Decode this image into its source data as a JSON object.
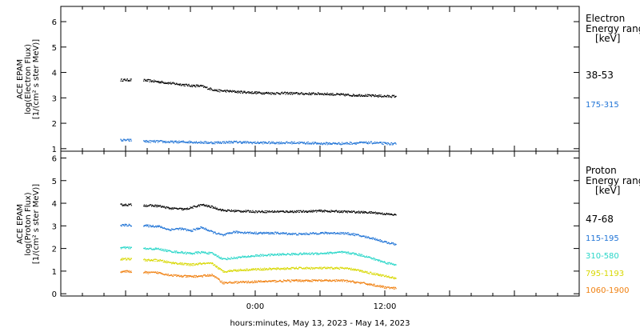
{
  "chart_data": [
    {
      "type": "scatter",
      "panel": "electron",
      "ylabel_lines": [
        "ACE EPAM",
        "log(Electron Flux)",
        "[1/(cm² s ster MeV)]"
      ],
      "ylim": [
        0.9,
        6.6
      ],
      "yticks": [
        "1",
        "2",
        "3",
        "4",
        "5",
        "6"
      ],
      "legend_title": [
        "Electron",
        "Energy ranges",
        "[keV]"
      ],
      "series": [
        {
          "name": "38-53",
          "color": "#000000",
          "x": [
            -12.5,
            -11.2,
            -10.0,
            -9.0,
            -8.0,
            -7.0,
            -6.0,
            -5.0,
            -4.3,
            -3.5,
            -2.5,
            -1.5,
            0,
            1.5,
            3.0,
            4.5,
            6.0,
            7.5,
            9.0,
            10.0,
            10.5,
            11.0,
            12.0,
            13.0
          ],
          "y": [
            3.72,
            3.72,
            3.7,
            3.65,
            3.6,
            3.55,
            3.5,
            3.48,
            3.38,
            3.3,
            3.28,
            3.25,
            3.22,
            3.2,
            3.2,
            3.18,
            3.18,
            3.15,
            3.12,
            3.12,
            3.1,
            3.1,
            3.08,
            3.08
          ]
        },
        {
          "name": "175-315",
          "color": "#1f73d6",
          "x": [
            -12.5,
            -11.0,
            -10.0,
            -9.0,
            -8.0,
            -6.0,
            -4.0,
            -2.0,
            0,
            2.0,
            4.0,
            6.0,
            8.0,
            10.0,
            11.0,
            12.0,
            13.0
          ],
          "y": [
            1.35,
            1.35,
            1.3,
            1.3,
            1.28,
            1.28,
            1.25,
            1.28,
            1.25,
            1.25,
            1.25,
            1.22,
            1.22,
            1.25,
            1.25,
            1.22,
            1.2
          ]
        }
      ]
    },
    {
      "type": "scatter",
      "panel": "proton",
      "ylabel_lines": [
        "ACE EPAM",
        "log(Proton Flux)",
        "[1/(cm² s ster MeV)]"
      ],
      "ylim": [
        -0.1,
        6.3
      ],
      "yticks": [
        "0",
        "1",
        "2",
        "3",
        "4",
        "5",
        "6"
      ],
      "xticks": [
        "0:00",
        "12:00"
      ],
      "xlabel": "hours:minutes, May 13, 2023 - May 14, 2023",
      "legend_title": [
        "Proton",
        "Energy ranges",
        "[keV]"
      ],
      "series": [
        {
          "name": "47-68",
          "color": "#000000",
          "x": [
            -12.5,
            -11.0,
            -10.0,
            -9.0,
            -8.0,
            -6.5,
            -5.0,
            -4.0,
            -3.0,
            -2.0,
            0,
            2.0,
            4.0,
            6.0,
            8.0,
            10.0,
            11.0,
            12.0,
            13.0
          ],
          "y": [
            3.95,
            3.95,
            3.92,
            3.9,
            3.8,
            3.75,
            3.95,
            3.85,
            3.7,
            3.68,
            3.65,
            3.65,
            3.65,
            3.68,
            3.65,
            3.62,
            3.6,
            3.55,
            3.5
          ]
        },
        {
          "name": "115-195",
          "color": "#1f73d6",
          "x": [
            -12.5,
            -11.0,
            -10.0,
            -9.0,
            -8.0,
            -7.0,
            -6.0,
            -5.0,
            -4.0,
            -3.0,
            -2.0,
            0,
            2.0,
            4.0,
            6.0,
            8.0,
            9.0,
            10.0,
            11.0,
            12.0,
            13.0
          ],
          "y": [
            3.05,
            3.05,
            3.02,
            3.0,
            2.85,
            2.9,
            2.8,
            2.95,
            2.75,
            2.6,
            2.75,
            2.7,
            2.7,
            2.65,
            2.7,
            2.7,
            2.65,
            2.55,
            2.45,
            2.3,
            2.2
          ]
        },
        {
          "name": "310-580",
          "color": "#27d6c8",
          "x": [
            -12.5,
            -11.0,
            -10.0,
            -9.0,
            -8.0,
            -7.0,
            -6.0,
            -5.0,
            -4.0,
            -3.0,
            -2.0,
            0,
            2.0,
            4.0,
            6.0,
            8.0,
            9.0,
            10.0,
            11.0,
            12.0,
            13.0
          ],
          "y": [
            2.05,
            2.05,
            2.0,
            2.0,
            1.9,
            1.85,
            1.8,
            1.85,
            1.8,
            1.55,
            1.6,
            1.7,
            1.75,
            1.78,
            1.8,
            1.85,
            1.8,
            1.7,
            1.55,
            1.4,
            1.3
          ]
        },
        {
          "name": "795-1193",
          "color": "#d8d800",
          "x": [
            -12.5,
            -11.0,
            -10.0,
            -9.0,
            -8.0,
            -7.0,
            -6.0,
            -5.0,
            -4.0,
            -3.0,
            -2.0,
            0,
            2.0,
            4.0,
            6.0,
            8.0,
            9.0,
            10.0,
            11.0,
            12.0,
            13.0
          ],
          "y": [
            1.55,
            1.55,
            1.5,
            1.5,
            1.4,
            1.35,
            1.3,
            1.35,
            1.35,
            1.0,
            1.05,
            1.1,
            1.12,
            1.15,
            1.15,
            1.15,
            1.1,
            1.0,
            0.9,
            0.8,
            0.7
          ]
        },
        {
          "name": "1060-1900",
          "color": "#f08010",
          "x": [
            -12.5,
            -11.0,
            -10.0,
            -9.0,
            -8.0,
            -7.0,
            -6.0,
            -5.0,
            -4.0,
            -3.0,
            -2.0,
            0,
            2.0,
            4.0,
            6.0,
            8.0,
            9.0,
            10.0,
            11.0,
            12.0,
            13.0
          ],
          "y": [
            1.0,
            1.0,
            0.95,
            0.95,
            0.85,
            0.8,
            0.78,
            0.8,
            0.85,
            0.5,
            0.52,
            0.55,
            0.58,
            0.6,
            0.6,
            0.6,
            0.55,
            0.48,
            0.4,
            0.3,
            0.25
          ]
        }
      ]
    }
  ]
}
